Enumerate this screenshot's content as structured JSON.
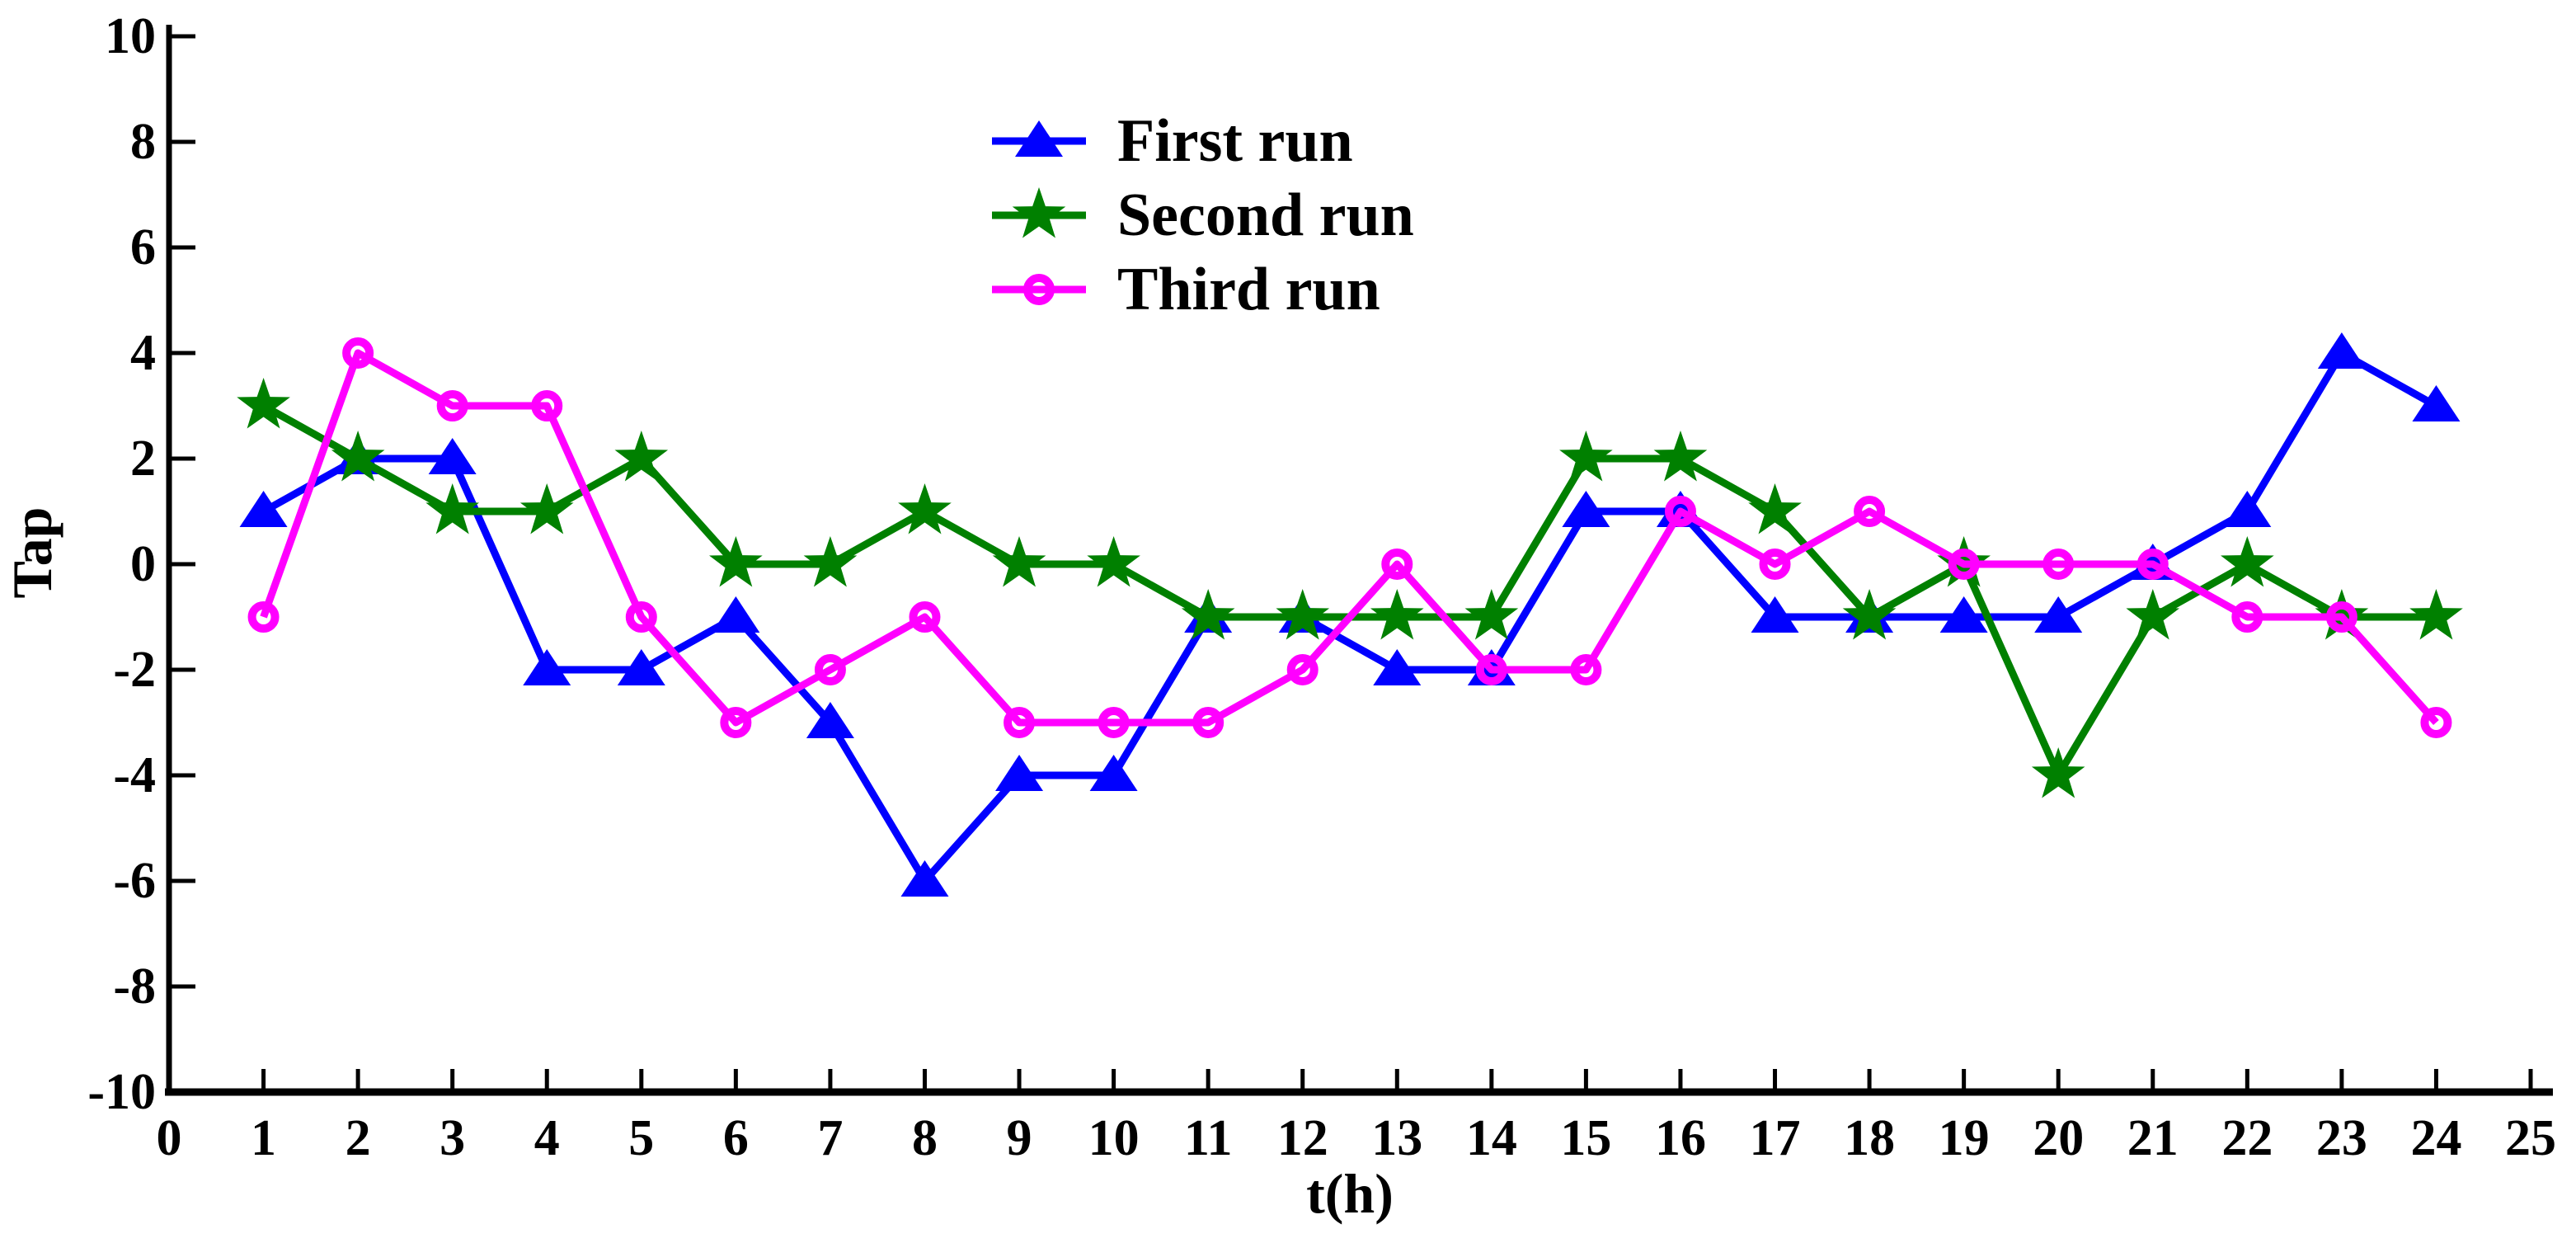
{
  "figure": {
    "background": "#FFFFFF",
    "axis_color": "#000000"
  },
  "chart_data": {
    "type": "line",
    "title": "",
    "xlabel": "t(h)",
    "ylabel": "Tap",
    "xlim": [
      0,
      25
    ],
    "ylim": [
      -10,
      10
    ],
    "x_tick_step": 1,
    "y_tick_step": 2,
    "x_tick_labels": [
      "0",
      "1",
      "2",
      "3",
      "4",
      "5",
      "6",
      "7",
      "8",
      "9",
      "10",
      "11",
      "12",
      "13",
      "14",
      "15",
      "16",
      "17",
      "18",
      "19",
      "20",
      "21",
      "22",
      "23",
      "24",
      "25"
    ],
    "y_tick_labels": [
      "-10",
      "-8",
      "-6",
      "-4",
      "-2",
      "0",
      "2",
      "4",
      "6",
      "8",
      "10"
    ],
    "grid": false,
    "legend_position": "inside-top-center",
    "legend_has_border": false,
    "x": [
      1,
      2,
      3,
      4,
      5,
      6,
      7,
      8,
      9,
      10,
      11,
      12,
      13,
      14,
      15,
      16,
      17,
      18,
      19,
      20,
      21,
      22,
      23,
      24
    ],
    "series": [
      {
        "name": "First run",
        "color": "#0000FF",
        "marker": "triangle-up-filled",
        "values": [
          1,
          2,
          2,
          -2,
          -2,
          -1,
          -3,
          -6,
          -4,
          -4,
          -1,
          -1,
          -2,
          -2,
          1,
          1,
          -1,
          -1,
          -1,
          -1,
          0,
          1,
          4,
          3
        ]
      },
      {
        "name": "Second run",
        "color": "#008000",
        "marker": "star-filled",
        "values": [
          3,
          2,
          1,
          1,
          2,
          0,
          0,
          1,
          0,
          0,
          -1,
          -1,
          -1,
          -1,
          2,
          2,
          1,
          -1,
          0,
          -4,
          -1,
          0,
          -1,
          -1
        ]
      },
      {
        "name": "Third run",
        "color": "#FF00FF",
        "marker": "circle-open",
        "values": [
          -1,
          4,
          3,
          3,
          -1,
          -3,
          -2,
          -1,
          -3,
          -3,
          -3,
          -2,
          0,
          -2,
          -2,
          1,
          0,
          1,
          0,
          0,
          0,
          -1,
          -1,
          -3
        ]
      }
    ]
  }
}
